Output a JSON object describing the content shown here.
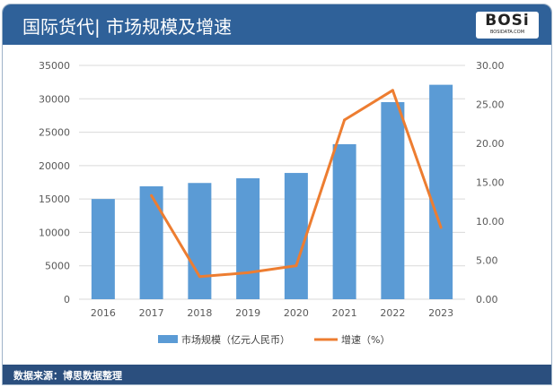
{
  "header": {
    "title": "国际货代| 市场规模及增速",
    "logo_text": "BOSi",
    "logo_sub": "BOSIDATA.COM"
  },
  "footer": {
    "source": "数据来源：博思数据整理"
  },
  "colors": {
    "bar": "#5b9bd5",
    "line": "#ed7d31",
    "header": "#2f6199",
    "footer": "#2b4f7e"
  },
  "chart_data": {
    "type": "bar+line",
    "categories": [
      "2016",
      "2017",
      "2018",
      "2019",
      "2020",
      "2021",
      "2022",
      "2023"
    ],
    "series": [
      {
        "name": "市场规模（亿元人民币）",
        "type": "bar",
        "axis": "left",
        "values": [
          15000,
          16900,
          17400,
          18100,
          18900,
          23200,
          29500,
          32100
        ]
      },
      {
        "name": "增速（%）",
        "type": "line",
        "axis": "right",
        "values": [
          null,
          13.3,
          2.9,
          3.4,
          4.3,
          23.0,
          26.8,
          9.2
        ]
      }
    ],
    "left_axis": {
      "range": [
        0,
        35000
      ],
      "ticks": [
        "0",
        "5000",
        "10000",
        "15000",
        "20000",
        "25000",
        "30000",
        "35000"
      ]
    },
    "right_axis": {
      "range": [
        0,
        30
      ],
      "ticks": [
        "0.00",
        "5.00",
        "10.00",
        "15.00",
        "20.00",
        "25.00",
        "30.00"
      ]
    },
    "grid": true,
    "legend": "bottom"
  }
}
